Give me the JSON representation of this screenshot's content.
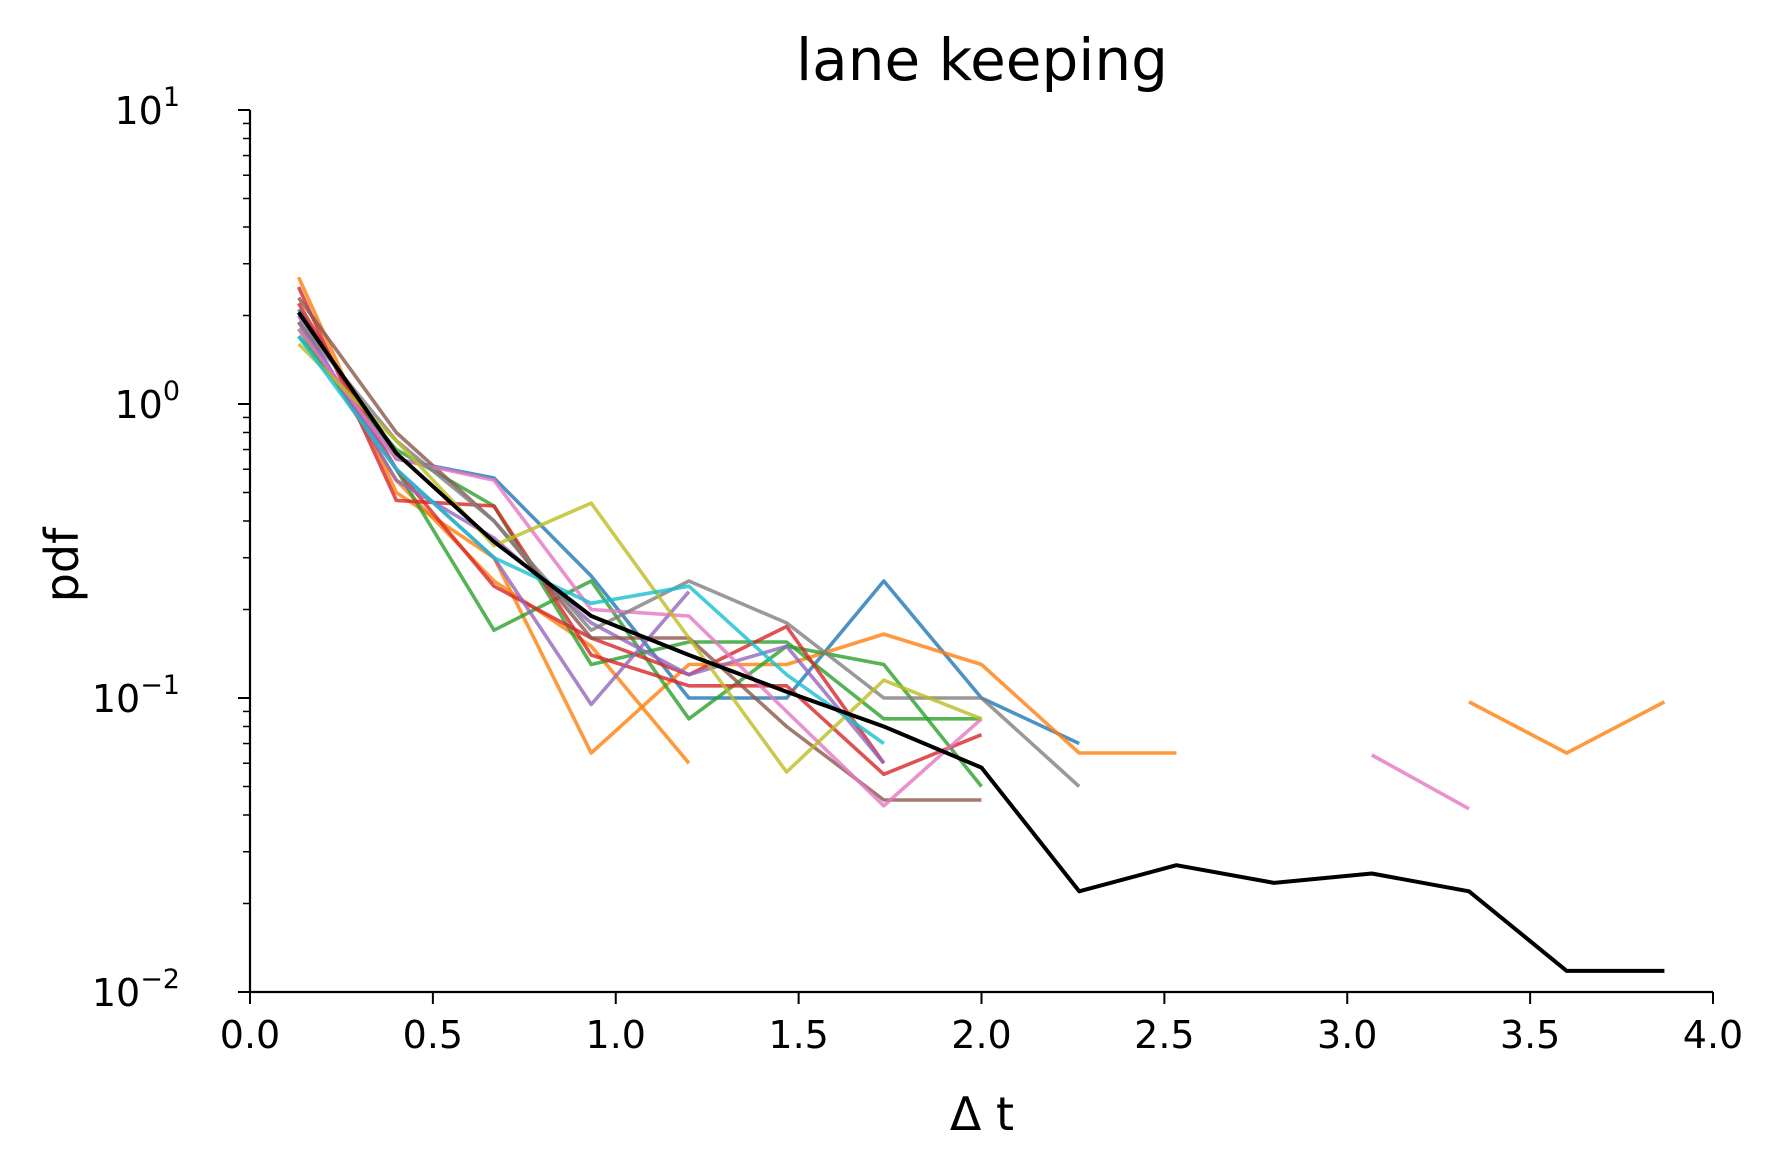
{
  "chart_data": {
    "type": "line",
    "title": "lane keeping",
    "xlabel": "Δ t",
    "ylabel": "pdf",
    "xlim": [
      0.0,
      4.0
    ],
    "ylim": [
      0.01,
      10
    ],
    "yscale": "log",
    "xticks": [
      "0.0",
      "0.5",
      "1.0",
      "1.5",
      "2.0",
      "2.5",
      "3.0",
      "3.5",
      "4.0"
    ],
    "yticks": [
      {
        "base": "10",
        "exp": "−2",
        "value": 0.01
      },
      {
        "base": "10",
        "exp": "−1",
        "value": 0.1
      },
      {
        "base": "10",
        "exp": "0",
        "value": 1
      },
      {
        "base": "10",
        "exp": "1",
        "value": 10
      }
    ],
    "grid": false,
    "legend": "none",
    "series": [
      {
        "color": "#1f77b4",
        "points": [
          [
            0.133,
            2.1
          ],
          [
            0.4,
            0.65
          ],
          [
            0.667,
            0.56
          ],
          [
            0.933,
            0.26
          ],
          [
            1.2,
            0.1
          ],
          [
            1.467,
            0.1
          ],
          [
            1.733,
            0.25
          ],
          [
            2.0,
            0.1
          ],
          [
            2.267,
            0.07
          ]
        ]
      },
      {
        "color": "#ff7f0e",
        "points": [
          [
            0.133,
            2.7
          ],
          [
            0.4,
            0.5
          ],
          [
            0.667,
            0.3
          ],
          [
            0.933,
            0.065
          ],
          [
            1.2,
            0.13
          ],
          [
            1.467,
            0.13
          ],
          [
            1.733,
            0.165
          ],
          [
            2.0,
            0.13
          ],
          [
            2.267,
            0.065
          ],
          [
            2.533,
            0.065
          ]
        ]
      },
      {
        "color": "#ff7f0e",
        "points": [
          [
            0.133,
            1.9
          ],
          [
            0.4,
            0.55
          ],
          [
            0.667,
            0.25
          ],
          [
            0.933,
            0.15
          ],
          [
            1.2,
            0.06
          ]
        ]
      },
      {
        "color": "#ff7f0e",
        "points": [
          [
            3.333,
            0.097
          ],
          [
            3.6,
            0.065
          ],
          [
            3.867,
            0.097
          ]
        ]
      },
      {
        "color": "#2ca02c",
        "points": [
          [
            0.133,
            1.8
          ],
          [
            0.4,
            0.6
          ],
          [
            0.667,
            0.17
          ],
          [
            0.933,
            0.25
          ],
          [
            1.2,
            0.085
          ],
          [
            1.467,
            0.15
          ],
          [
            1.733,
            0.13
          ],
          [
            2.0,
            0.05
          ]
        ]
      },
      {
        "color": "#2ca02c",
        "points": [
          [
            0.133,
            1.7
          ],
          [
            0.4,
            0.7
          ],
          [
            0.667,
            0.45
          ],
          [
            0.933,
            0.13
          ],
          [
            1.2,
            0.155
          ],
          [
            1.467,
            0.155
          ],
          [
            1.733,
            0.085
          ],
          [
            2.0,
            0.085
          ]
        ]
      },
      {
        "color": "#d62728",
        "points": [
          [
            0.133,
            2.5
          ],
          [
            0.4,
            0.47
          ],
          [
            0.667,
            0.45
          ],
          [
            0.933,
            0.14
          ],
          [
            1.2,
            0.11
          ],
          [
            1.467,
            0.11
          ],
          [
            1.733,
            0.055
          ],
          [
            2.0,
            0.075
          ]
        ]
      },
      {
        "color": "#d62728",
        "points": [
          [
            0.133,
            2.2
          ],
          [
            0.4,
            0.6
          ],
          [
            0.667,
            0.24
          ],
          [
            0.933,
            0.16
          ],
          [
            1.2,
            0.12
          ],
          [
            1.467,
            0.175
          ],
          [
            1.733,
            0.06
          ]
        ]
      },
      {
        "color": "#9467bd",
        "points": [
          [
            0.133,
            1.9
          ],
          [
            0.4,
            0.6
          ],
          [
            0.667,
            0.3
          ],
          [
            0.933,
            0.095
          ],
          [
            1.2,
            0.23
          ]
        ]
      },
      {
        "color": "#9467bd",
        "points": [
          [
            0.133,
            2.0
          ],
          [
            0.4,
            0.55
          ],
          [
            0.667,
            0.35
          ],
          [
            0.933,
            0.18
          ],
          [
            1.2,
            0.12
          ],
          [
            1.467,
            0.15
          ],
          [
            1.733,
            0.06
          ]
        ]
      },
      {
        "color": "#8c564b",
        "points": [
          [
            0.133,
            2.3
          ],
          [
            0.4,
            0.8
          ],
          [
            0.667,
            0.4
          ],
          [
            0.933,
            0.16
          ],
          [
            1.2,
            0.16
          ],
          [
            1.467,
            0.08
          ],
          [
            1.733,
            0.045
          ],
          [
            2.0,
            0.045
          ]
        ]
      },
      {
        "color": "#e377c2",
        "points": [
          [
            0.133,
            1.8
          ],
          [
            0.4,
            0.65
          ],
          [
            0.667,
            0.55
          ],
          [
            0.933,
            0.2
          ],
          [
            1.2,
            0.19
          ],
          [
            1.467,
            0.09
          ],
          [
            1.733,
            0.043
          ],
          [
            2.0,
            0.085
          ]
        ]
      },
      {
        "color": "#e377c2",
        "points": [
          [
            3.067,
            0.064
          ],
          [
            3.333,
            0.042
          ]
        ]
      },
      {
        "color": "#7f7f7f",
        "points": [
          [
            0.133,
            1.9
          ],
          [
            0.4,
            0.75
          ],
          [
            0.667,
            0.4
          ],
          [
            0.933,
            0.17
          ],
          [
            1.2,
            0.25
          ],
          [
            1.467,
            0.18
          ],
          [
            1.733,
            0.1
          ],
          [
            2.0,
            0.1
          ],
          [
            2.267,
            0.05
          ]
        ]
      },
      {
        "color": "#bcbd22",
        "points": [
          [
            0.133,
            1.6
          ],
          [
            0.4,
            0.75
          ],
          [
            0.667,
            0.33
          ],
          [
            0.933,
            0.46
          ],
          [
            1.2,
            0.16
          ],
          [
            1.467,
            0.056
          ],
          [
            1.733,
            0.115
          ],
          [
            2.0,
            0.085
          ]
        ]
      },
      {
        "color": "#17becf",
        "points": [
          [
            0.133,
            1.7
          ],
          [
            0.4,
            0.6
          ],
          [
            0.667,
            0.3
          ],
          [
            0.933,
            0.21
          ],
          [
            1.2,
            0.24
          ],
          [
            1.467,
            0.12
          ],
          [
            1.733,
            0.07
          ]
        ]
      },
      {
        "color": "#000000",
        "opaque": true,
        "points": [
          [
            0.133,
            2.05
          ],
          [
            0.4,
            0.68
          ],
          [
            0.667,
            0.34
          ],
          [
            0.933,
            0.19
          ],
          [
            1.2,
            0.14
          ],
          [
            1.467,
            0.105
          ],
          [
            1.733,
            0.08
          ],
          [
            2.0,
            0.058
          ],
          [
            2.267,
            0.022
          ],
          [
            2.533,
            0.027
          ],
          [
            2.8,
            0.0235
          ],
          [
            3.067,
            0.0253
          ],
          [
            3.333,
            0.022
          ],
          [
            3.6,
            0.0118
          ],
          [
            3.867,
            0.0118
          ]
        ]
      }
    ]
  }
}
